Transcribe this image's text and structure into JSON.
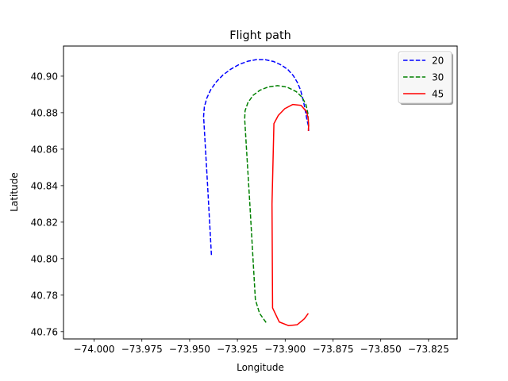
{
  "chart_data": {
    "type": "line",
    "title": "Flight path",
    "xlabel": "Longitude",
    "ylabel": "Latitude",
    "xlim": [
      -74.016,
      -73.81
    ],
    "ylim": [
      40.756,
      40.9165
    ],
    "xticks": [
      -74.0,
      -73.975,
      -73.95,
      -73.925,
      -73.9,
      -73.875,
      -73.85,
      -73.825
    ],
    "xtick_labels": [
      "−74.000",
      "−73.975",
      "−73.950",
      "−73.925",
      "−73.900",
      "−73.875",
      "−73.850",
      "−73.825"
    ],
    "yticks": [
      40.76,
      40.78,
      40.8,
      40.82,
      40.84,
      40.86,
      40.88,
      40.9
    ],
    "ytick_labels": [
      "40.76",
      "40.78",
      "40.80",
      "40.82",
      "40.84",
      "40.86",
      "40.88",
      "40.90"
    ],
    "grid": false,
    "legend_position": "top-right",
    "series": [
      {
        "name": "20",
        "color": "#0000ff",
        "style": "dashed",
        "x": [
          -73.9386,
          -73.9406,
          -73.9427,
          -73.9423,
          -73.941,
          -73.939,
          -73.9361,
          -73.9326,
          -73.9285,
          -73.9241,
          -73.9195,
          -73.9149,
          -73.9103,
          -73.906,
          -73.902,
          -73.8985,
          -73.8957,
          -73.8936,
          -73.892,
          -73.891,
          -73.89,
          -73.8894,
          -73.8886,
          -73.8879,
          -73.8877
        ],
        "y": [
          40.802,
          40.84,
          40.878,
          40.8831,
          40.888,
          40.8925,
          40.8968,
          40.9006,
          40.9038,
          40.9064,
          40.9082,
          40.9091,
          40.909,
          40.908,
          40.9061,
          40.9035,
          40.9002,
          40.8965,
          40.8925,
          40.8885,
          40.884,
          40.8805,
          40.876,
          40.873,
          40.87
        ]
      },
      {
        "name": "30",
        "color": "#008000",
        "style": "dashed",
        "x": [
          -73.91,
          -73.9134,
          -73.9156,
          -73.9185,
          -73.9212,
          -73.921,
          -73.9195,
          -73.9168,
          -73.9132,
          -73.9089,
          -73.904,
          -73.899,
          -73.8942,
          -73.8912,
          -73.8892,
          -73.8882,
          -73.8879,
          -73.8877
        ],
        "y": [
          40.765,
          40.77,
          40.7775,
          40.83,
          40.8765,
          40.881,
          40.8855,
          40.8895,
          40.8923,
          40.8941,
          40.8948,
          40.894,
          40.8915,
          40.8885,
          40.8846,
          40.88,
          40.876,
          40.871
        ]
      },
      {
        "name": "45",
        "color": "#ff0000",
        "style": "solid",
        "x": [
          -73.8879,
          -73.89,
          -73.8937,
          -73.8983,
          -73.9031,
          -73.9066,
          -73.9069,
          -73.9059,
          -73.9036,
          -73.9002,
          -73.896,
          -73.8917,
          -73.8888,
          -73.888,
          -73.8877,
          -73.8879
        ],
        "y": [
          40.77,
          40.767,
          40.7638,
          40.7633,
          40.7653,
          40.773,
          40.83,
          40.874,
          40.8785,
          40.8822,
          40.8845,
          40.884,
          40.8805,
          40.877,
          40.873,
          40.87
        ]
      }
    ]
  }
}
